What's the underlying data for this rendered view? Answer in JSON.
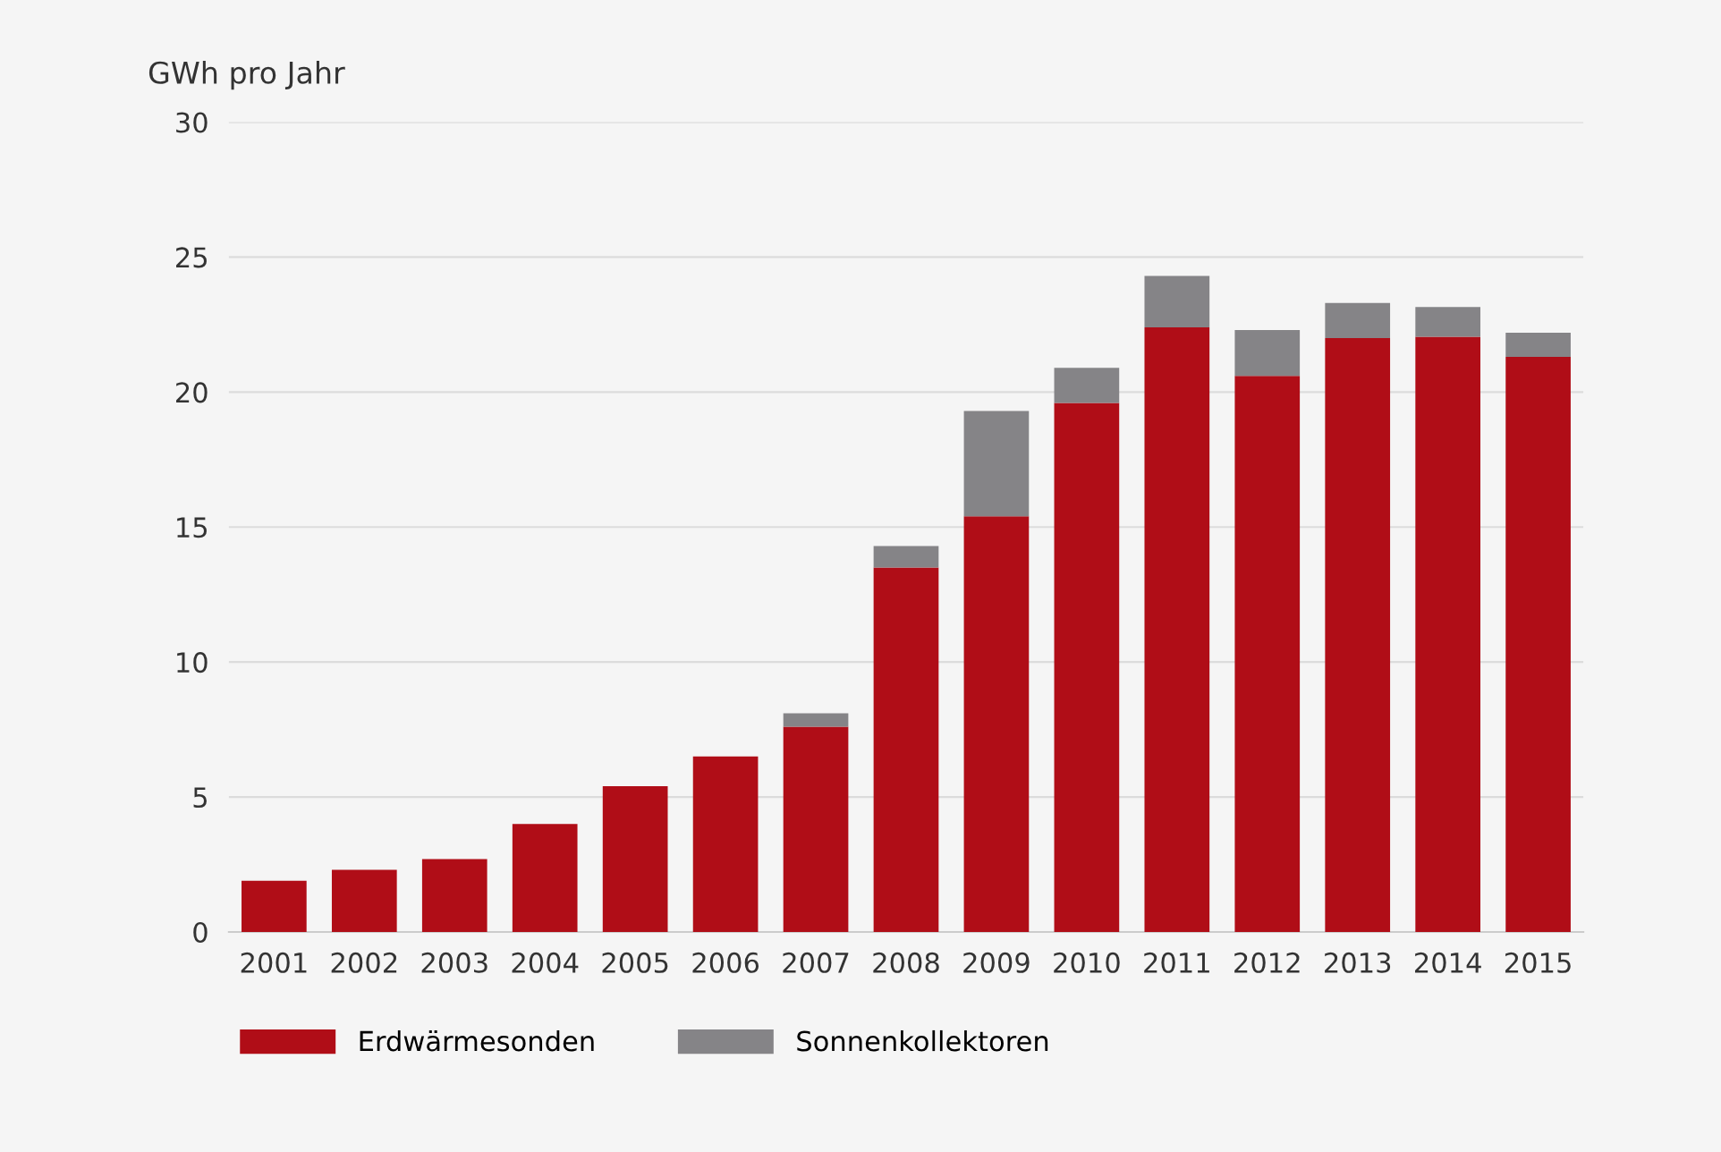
{
  "chart_data": {
    "type": "bar",
    "stacked": true,
    "ylabel": "GWh pro Jahr",
    "categories": [
      "2001",
      "2002",
      "2003",
      "2004",
      "2005",
      "2006",
      "2007",
      "2008",
      "2009",
      "2010",
      "2011",
      "2012",
      "2013",
      "2014",
      "2015"
    ],
    "series": [
      {
        "name": "Erdwärmesonden",
        "color": "#b00d17",
        "values": [
          1.9,
          2.3,
          2.7,
          4.0,
          5.4,
          6.5,
          7.6,
          13.5,
          15.4,
          19.6,
          22.4,
          20.6,
          22.0,
          22.05,
          21.3
        ]
      },
      {
        "name": "Sonnenkollektoren",
        "color": "#858487",
        "values": [
          0,
          0,
          0,
          0,
          0,
          0,
          0.5,
          0.8,
          3.9,
          1.3,
          1.9,
          1.7,
          1.3,
          1.1,
          0.9
        ]
      }
    ],
    "ylim": [
      0,
      30
    ],
    "yticks": [
      0,
      5,
      10,
      15,
      20,
      25,
      30
    ],
    "grid": "y",
    "legend": "bottom"
  }
}
